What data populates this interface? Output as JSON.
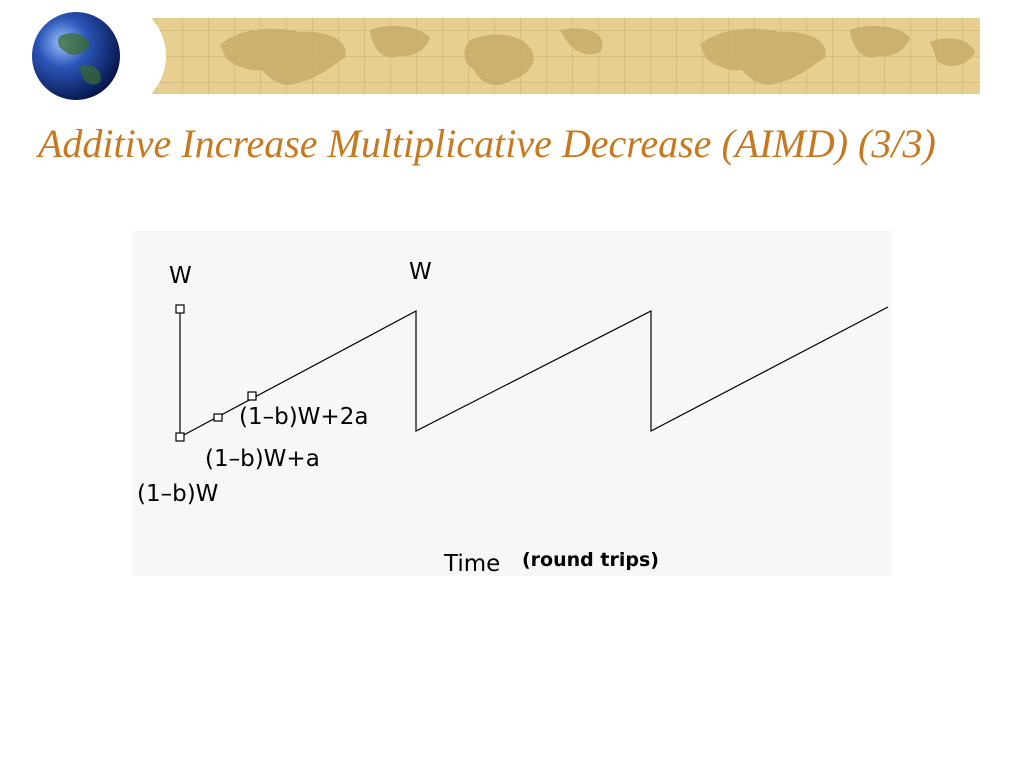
{
  "slide": {
    "title": "Additive Increase Multiplicative Decrease (AIMD) (3/3)",
    "title_color": "#c8781e",
    "banner_color": "#e6cf91",
    "banner_map_color": "#c9ad6c"
  },
  "diagram": {
    "background": "#f7f7f7",
    "labels": {
      "w_left": "W",
      "w_peak": "W",
      "minus_2a": "(1–b)W+2a",
      "minus_a": "(1–b)W+a",
      "minus": "(1–b)W",
      "x_axis": "Time",
      "x_axis_unit": "(round trips)"
    }
  }
}
